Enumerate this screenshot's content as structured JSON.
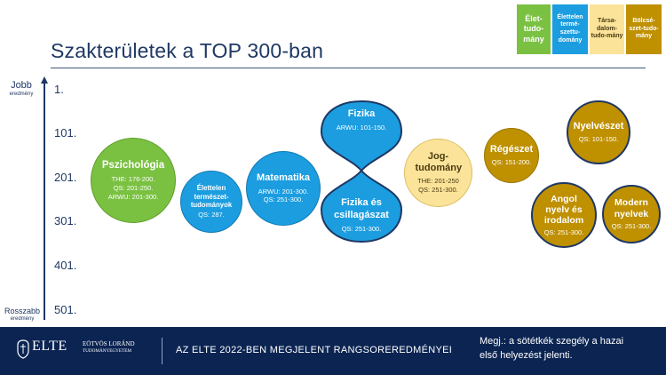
{
  "slide": {
    "title": "Szakterületek a TOP 300-ban"
  },
  "legend": [
    {
      "label": "Élet-tudo-mány",
      "color": "#7ac142"
    },
    {
      "label": "Élettelen termé-szettu-domány",
      "color": "#1b9de0"
    },
    {
      "label": "Társa-dalom-tudo-mány",
      "color": "#fbe39a"
    },
    {
      "label": "Bölcsé-szet-tudo-mány",
      "color": "#bf9000"
    }
  ],
  "axis": {
    "top_label": "Jobb",
    "top_sublabel": "eredmény",
    "bottom_label": "Rosszabb",
    "bottom_sublabel": "eredmény",
    "ticks": [
      "1.",
      "101.",
      "201.",
      "301.",
      "401.",
      "501."
    ]
  },
  "subjects": {
    "pszichologia": {
      "name": "Pszichológia",
      "details": [
        "THE: 176-200.",
        "QS: 201-250.",
        "ARWU: 201-300."
      ]
    },
    "elettelen": {
      "name": "Élettelen természet-tudományok",
      "details": [
        "QS: 287."
      ]
    },
    "matematika": {
      "name": "Matematika",
      "details": [
        "ARWU: 201-300.",
        "QS: 251-300."
      ]
    },
    "fizika": {
      "name": "Fizika",
      "details": [
        "ARWU: 101-150."
      ]
    },
    "fizika_csillagaszat": {
      "name": "Fizika és csillagászat",
      "details": [
        "QS: 251-300."
      ]
    },
    "jogtudomany": {
      "name": "Jog-tudomány",
      "details": [
        "THE: 201-250",
        "QS: 251-300."
      ]
    },
    "regeszet": {
      "name": "Régészet",
      "details": [
        "QS: 151-200."
      ]
    },
    "nyelveszet": {
      "name": "Nyelvészet",
      "details": [
        "QS: 101-150."
      ]
    },
    "angol": {
      "name": "Angol nyelv és irodalom",
      "details": [
        "QS: 251-300."
      ]
    },
    "modern": {
      "name": "Modern nyelvek",
      "details": [
        "QS: 251-300."
      ]
    }
  },
  "footer": {
    "logo_word": "ELTE",
    "university_line1": "EÖTVÖS LORÁND",
    "university_line2": "TUDOMÁNYEGYETEM",
    "center_text": "AZ ELTE 2022-BEN MEGJELENT RANGSOREREDMÉNYEI",
    "note_line1": "Megj.: a sötétkék szegély a hazai",
    "note_line2": "első helyezést jelenti."
  }
}
